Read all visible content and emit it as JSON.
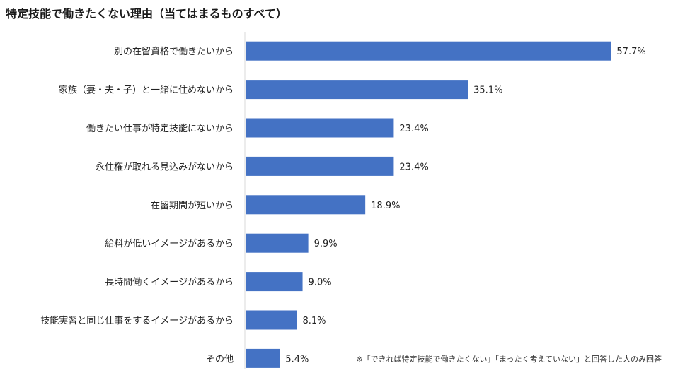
{
  "chart_data": {
    "type": "bar",
    "orientation": "horizontal",
    "title": "特定技能で働きたくない理由（当てはまるものすべて）",
    "categories": [
      "別の在留資格で働きたいから",
      "家族（妻・夫・子）と一緒に住めないから",
      "働きたい仕事が特定技能にないから",
      "永住権が取れる見込みがないから",
      "在留期間が短いから",
      "給料が低いイメージがあるから",
      "長時間働くイメージがあるから",
      "技能実習と同じ仕事をするイメージがあるから",
      "その他"
    ],
    "values": [
      57.7,
      35.1,
      23.4,
      23.4,
      18.9,
      9.9,
      9.0,
      8.1,
      5.4
    ],
    "value_labels": [
      "57.7%",
      "35.1%",
      "23.4%",
      "23.4%",
      "18.9%",
      "9.9%",
      "9.0%",
      "8.1%",
      "5.4%"
    ],
    "xlim": [
      0,
      60
    ],
    "grid": false,
    "legend": "none",
    "bar_color": "#4472C4",
    "axis_color": "#D9D9D9",
    "xlabel": "",
    "ylabel": ""
  },
  "footnote": "※「できれば特定技能で働きたくない」「まったく考えていない」と回答した人のみ回答"
}
